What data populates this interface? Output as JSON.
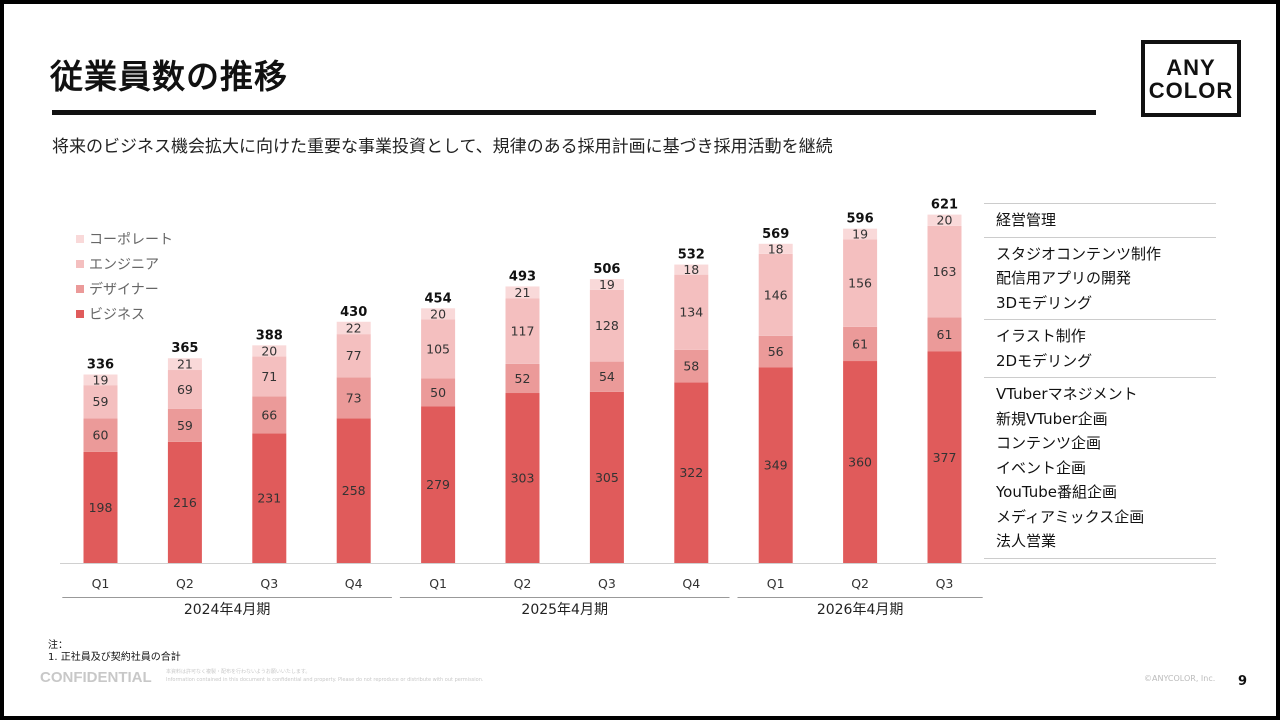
{
  "title": "従業員数の推移",
  "logo": {
    "line1": "ANY",
    "line2": "COLOR"
  },
  "subtitle": "将来のビジネス機会拡大に向けた重要な事業投資として、規律のある採用計画に基づき採用活動を継続",
  "colors": {
    "ビジネス": "#e05b5b",
    "デザイナー": "#eb9a99",
    "エンジニア": "#f4bfbf",
    "コーポレート": "#f9d9d9"
  },
  "legend": [
    "コーポレート",
    "エンジニア",
    "デザイナー",
    "ビジネス"
  ],
  "chart_data": {
    "type": "bar",
    "stacked": true,
    "categories": [
      "Q1",
      "Q2",
      "Q3",
      "Q4",
      "Q1",
      "Q2",
      "Q3",
      "Q4",
      "Q1",
      "Q2",
      "Q3"
    ],
    "periods": [
      {
        "label": "2024年4月期",
        "quarters": [
          "Q1",
          "Q2",
          "Q3",
          "Q4"
        ]
      },
      {
        "label": "2025年4月期",
        "quarters": [
          "Q1",
          "Q2",
          "Q3",
          "Q4"
        ]
      },
      {
        "label": "2026年4月期",
        "quarters": [
          "Q1",
          "Q2",
          "Q3"
        ]
      }
    ],
    "series": [
      {
        "name": "ビジネス",
        "values": [
          198,
          216,
          231,
          258,
          279,
          303,
          305,
          322,
          349,
          360,
          377
        ]
      },
      {
        "name": "デザイナー",
        "values": [
          60,
          59,
          66,
          73,
          50,
          52,
          54,
          58,
          56,
          61,
          61
        ]
      },
      {
        "name": "エンジニア",
        "values": [
          59,
          69,
          71,
          77,
          105,
          117,
          128,
          134,
          146,
          156,
          163
        ]
      },
      {
        "name": "コーポレート",
        "values": [
          19,
          21,
          20,
          22,
          20,
          21,
          19,
          18,
          18,
          19,
          20
        ]
      }
    ],
    "totals": [
      336,
      365,
      388,
      430,
      454,
      493,
      506,
      532,
      569,
      596,
      621
    ],
    "ylim": [
      0,
      640
    ],
    "legend_position": "top-left"
  },
  "category_groups": [
    {
      "items": [
        "経営管理"
      ]
    },
    {
      "items": [
        "スタジオコンテンツ制作",
        "配信用アプリの開発",
        "3Dモデリング"
      ]
    },
    {
      "items": [
        "イラスト制作",
        "2Dモデリング"
      ]
    },
    {
      "items": [
        "VTuberマネジメント",
        "新規VTuber企画",
        "コンテンツ企画",
        "イベント企画",
        "YouTube番組企画",
        "メディアミックス企画",
        "法人営業"
      ]
    }
  ],
  "notes": {
    "line1": "注：",
    "line2": "1. 正社員及び契約社員の合計"
  },
  "confidential": "CONFIDENTIAL",
  "confidential_small1": "本資料は許可なく複製・配布を行わないようお願いいたします。",
  "confidential_small2": "Information contained in this document is confidential and property. Please do not reproduce or distribute with out permission.",
  "copyright": "©ANYCOLOR, Inc.",
  "page_number": "9"
}
